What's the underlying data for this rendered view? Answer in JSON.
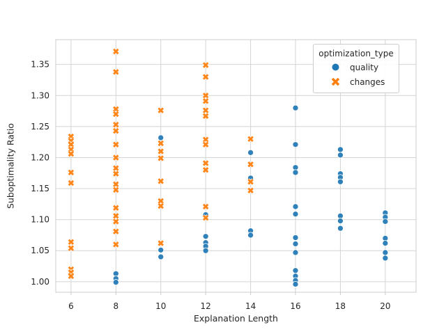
{
  "chart_data": {
    "type": "scatter",
    "title": "",
    "xlabel": "Explanation Length",
    "ylabel": "Suboptimality Ratio",
    "xticks": [
      6,
      8,
      10,
      12,
      14,
      16,
      18,
      20
    ],
    "yticks": [
      1.0,
      1.05,
      1.1,
      1.15,
      1.2,
      1.25,
      1.3,
      1.35
    ],
    "yticklabels": [
      "1.00",
      "1.05",
      "1.10",
      "1.15",
      "1.20",
      "1.25",
      "1.30",
      "1.35"
    ],
    "xlim": [
      5.32,
      21.37
    ],
    "ylim": [
      0.983,
      1.39
    ],
    "grid": true,
    "legend": {
      "title": "optimization_type",
      "position": "upper right"
    },
    "colors": {
      "quality": "#1f77b4",
      "changes": "#ff7f0e",
      "grid": "#d4d4d4",
      "spine": "#cccccc",
      "text": "#262626",
      "background": "#ffffff"
    },
    "series": [
      {
        "name": "quality",
        "marker": "circle",
        "color": "#1f77b4",
        "points": [
          [
            6,
            1.013
          ],
          [
            8,
            1.013
          ],
          [
            8,
            1.005
          ],
          [
            8,
            0.999
          ],
          [
            10,
            1.232
          ],
          [
            10,
            1.051
          ],
          [
            10,
            1.04
          ],
          [
            12,
            1.108
          ],
          [
            12,
            1.073
          ],
          [
            12,
            1.063
          ],
          [
            12,
            1.057
          ],
          [
            12,
            1.05
          ],
          [
            14,
            1.208
          ],
          [
            14,
            1.167
          ],
          [
            14,
            1.082
          ],
          [
            14,
            1.075
          ],
          [
            16,
            1.28
          ],
          [
            16,
            1.221
          ],
          [
            16,
            1.184
          ],
          [
            16,
            1.176
          ],
          [
            16,
            1.121
          ],
          [
            16,
            1.109
          ],
          [
            16,
            1.071
          ],
          [
            16,
            1.061
          ],
          [
            16,
            1.047
          ],
          [
            16,
            1.018
          ],
          [
            16,
            1.009
          ],
          [
            16,
            1.002
          ],
          [
            16,
            0.996
          ],
          [
            18,
            1.213
          ],
          [
            18,
            1.204
          ],
          [
            18,
            1.174
          ],
          [
            18,
            1.168
          ],
          [
            18,
            1.161
          ],
          [
            18,
            1.106
          ],
          [
            18,
            1.098
          ],
          [
            18,
            1.086
          ],
          [
            20,
            1.111
          ],
          [
            20,
            1.104
          ],
          [
            20,
            1.097
          ],
          [
            20,
            1.07
          ],
          [
            20,
            1.062
          ],
          [
            20,
            1.047
          ],
          [
            20,
            1.038
          ]
        ]
      },
      {
        "name": "changes",
        "marker": "x",
        "color": "#ff7f0e",
        "points": [
          [
            6,
            1.234
          ],
          [
            6,
            1.227
          ],
          [
            6,
            1.221
          ],
          [
            6,
            1.213
          ],
          [
            6,
            1.206
          ],
          [
            6,
            1.176
          ],
          [
            6,
            1.159
          ],
          [
            6,
            1.064
          ],
          [
            6,
            1.054
          ],
          [
            6,
            1.02
          ],
          [
            6,
            1.015
          ],
          [
            6,
            1.009
          ],
          [
            8,
            1.371
          ],
          [
            8,
            1.338
          ],
          [
            8,
            1.278
          ],
          [
            8,
            1.27
          ],
          [
            8,
            1.253
          ],
          [
            8,
            1.243
          ],
          [
            8,
            1.221
          ],
          [
            8,
            1.2
          ],
          [
            8,
            1.183
          ],
          [
            8,
            1.174
          ],
          [
            8,
            1.157
          ],
          [
            8,
            1.148
          ],
          [
            8,
            1.119
          ],
          [
            8,
            1.106
          ],
          [
            8,
            1.097
          ],
          [
            8,
            1.081
          ],
          [
            8,
            1.06
          ],
          [
            10,
            1.276
          ],
          [
            10,
            1.223
          ],
          [
            10,
            1.21
          ],
          [
            10,
            1.199
          ],
          [
            10,
            1.162
          ],
          [
            10,
            1.13
          ],
          [
            10,
            1.122
          ],
          [
            10,
            1.062
          ],
          [
            12,
            1.349
          ],
          [
            12,
            1.33
          ],
          [
            12,
            1.3
          ],
          [
            12,
            1.291
          ],
          [
            12,
            1.276
          ],
          [
            12,
            1.267
          ],
          [
            12,
            1.229
          ],
          [
            12,
            1.221
          ],
          [
            12,
            1.191
          ],
          [
            12,
            1.18
          ],
          [
            12,
            1.121
          ],
          [
            12,
            1.103
          ],
          [
            14,
            1.23
          ],
          [
            14,
            1.189
          ],
          [
            14,
            1.161
          ],
          [
            14,
            1.147
          ]
        ]
      }
    ]
  }
}
